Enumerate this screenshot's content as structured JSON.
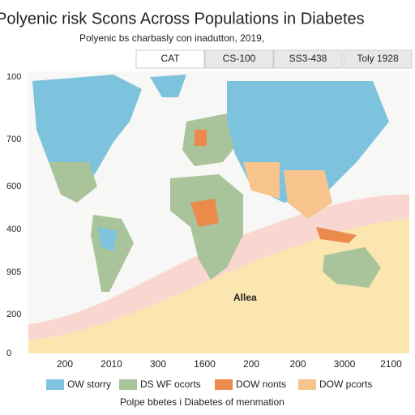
{
  "header": {
    "title": "Polyenic risk Scons Across Populations in Diabetes",
    "subtitle": "Polyenic bs charbasly con inadutton, 2019,"
  },
  "tabs": [
    "CAT",
    "CS-100",
    "SS3-438",
    "Toly 1928"
  ],
  "y_labels": [
    "100",
    "700",
    "600",
    "400",
    "905",
    "200",
    "0"
  ],
  "x_labels": [
    "200",
    "2010",
    "300",
    "1600",
    "200",
    "200",
    "3000",
    "2100"
  ],
  "annotation": "Allea",
  "legend": [
    {
      "label": "OW storry",
      "color": "#7ec3de"
    },
    {
      "label": "DS WF ocorts",
      "color": "#a9c49a"
    },
    {
      "label": "DOW nonts",
      "color": "#ec8a4c"
    },
    {
      "label": "DOW pcorts",
      "color": "#f6c48c"
    }
  ],
  "footer": "Polpe bbetes i Diabetes of menmation"
}
